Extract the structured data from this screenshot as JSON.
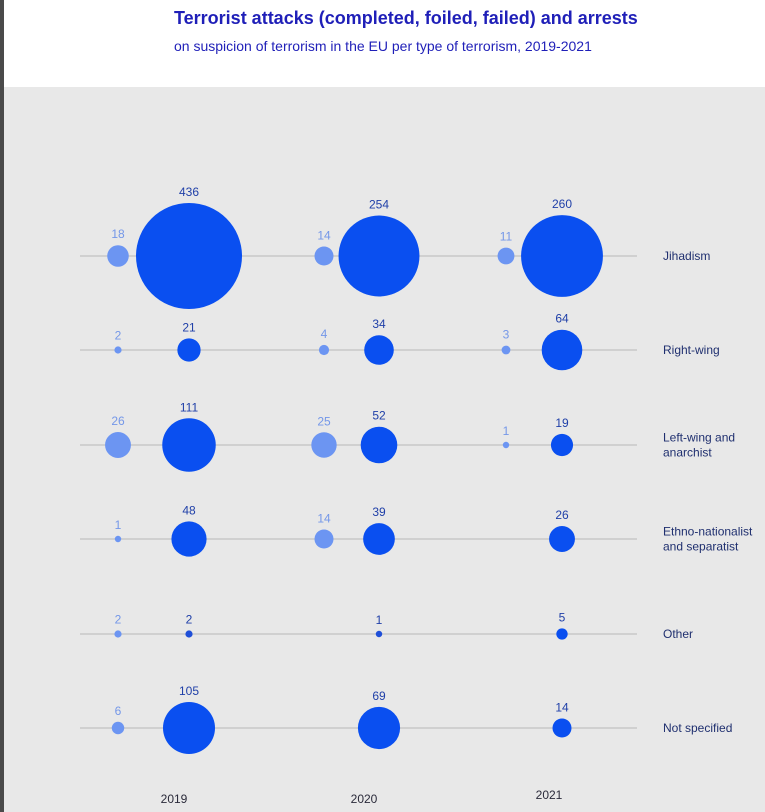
{
  "header": {
    "title": "Terrorist attacks (completed, foiled, failed) and arrests",
    "subtitle": "on suspicion of terrorism in the EU per type of terrorism, 2019-2021"
  },
  "colors": {
    "attacks": "#6c95f2",
    "arrests": "#0a4ff0",
    "arrests_small": "#1f4fd8",
    "line": "#b7b7b7",
    "label_attacks": "#7497e8",
    "label_arrests": "#1f3fa8",
    "category": "#1f2f6f",
    "plot_bg": "#e8e8e8"
  },
  "chart_data": {
    "type": "scatter",
    "title": "Terrorist attacks (completed, foiled, failed) and arrests",
    "subtitle": "on suspicion of terrorism in the EU per type of terrorism, 2019-2021",
    "years": [
      "2019",
      "2020",
      "2021"
    ],
    "categories": [
      "Jihadism",
      "Right-wing",
      "Left-wing and anarchist",
      "Ethno-nationalist and separatist",
      "Other",
      "Not specified"
    ],
    "category_lines": [
      [
        "Jihadism"
      ],
      [
        "Right-wing"
      ],
      [
        "Left-wing and",
        "anarchist"
      ],
      [
        "Ethno-nationalist",
        "and separatist"
      ],
      [
        "Other"
      ],
      [
        "Not specified"
      ]
    ],
    "series": [
      {
        "key": "attacks",
        "values": [
          [
            18,
            14,
            11
          ],
          [
            2,
            4,
            3
          ],
          [
            26,
            25,
            1
          ],
          [
            1,
            14,
            null
          ],
          [
            2,
            null,
            null
          ],
          [
            6,
            null,
            null
          ]
        ]
      },
      {
        "key": "arrests",
        "values": [
          [
            436,
            254,
            260
          ],
          [
            21,
            34,
            64
          ],
          [
            111,
            52,
            19
          ],
          [
            48,
            39,
            26
          ],
          [
            2,
            1,
            5
          ],
          [
            105,
            69,
            14
          ]
        ]
      }
    ],
    "size_encoding": "area proportional to value",
    "legend": "none",
    "grid": false
  }
}
